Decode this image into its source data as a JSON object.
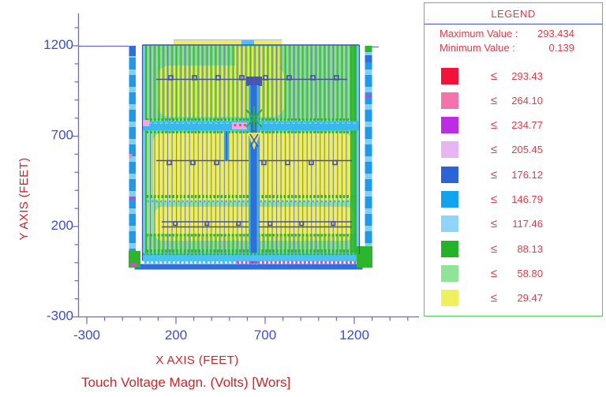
{
  "colors": {
    "axis_text_red": "#d2232a",
    "tick_label_blue": "#3b4ed2",
    "axis_line_blue": "#6468d8",
    "legend_border_green": "#55c857",
    "legend_text_red": "#dc3d49",
    "legend_separator_blue": "#4053cc"
  },
  "legend": {
    "title": "LEGEND",
    "max_label": "Maximum Value :",
    "max_value": "293.434",
    "min_label": "Minimum Value :",
    "min_value": "0.139",
    "operator": "≤",
    "entries": [
      {
        "color": "#f2133b",
        "value": "293.43"
      },
      {
        "color": "#f473ae",
        "value": "264.10"
      },
      {
        "color": "#bb2ce4",
        "value": "234.77"
      },
      {
        "color": "#e7b6f2",
        "value": "205.45"
      },
      {
        "color": "#2d63d9",
        "value": "176.12"
      },
      {
        "color": "#12a3ef",
        "value": "146.79"
      },
      {
        "color": "#8ed5f8",
        "value": "117.46"
      },
      {
        "color": "#22b329",
        "value": "88.13"
      },
      {
        "color": "#8fe497",
        "value": "58.80"
      },
      {
        "color": "#eef05c",
        "value": "29.47"
      }
    ]
  },
  "chart_data": {
    "type": "heatmap",
    "title": "Touch Voltage Magn. (Volts) [Wors]",
    "xlabel": "X AXIS   (FEET)",
    "ylabel": "Y AXIS   (FEET)",
    "xlim": [
      -300,
      1560
    ],
    "ylim": [
      -300,
      1380
    ],
    "x_major_ticks": [
      -300,
      200,
      700,
      1200
    ],
    "y_major_ticks": [
      -300,
      200,
      700,
      1200
    ],
    "minor_tick_step": 100,
    "grid": false,
    "legend_position": "right",
    "maximum_value": 293.434,
    "minimum_value": 0.139,
    "value_unit": "Volts",
    "axis_unit": "FEET",
    "color_scale_thresholds": [
      {
        "upper": 293.43,
        "color": "#f2133b"
      },
      {
        "upper": 264.1,
        "color": "#f473ae"
      },
      {
        "upper": 234.77,
        "color": "#bb2ce4"
      },
      {
        "upper": 205.45,
        "color": "#e7b6f2"
      },
      {
        "upper": 176.12,
        "color": "#2d63d9"
      },
      {
        "upper": 146.79,
        "color": "#12a3ef"
      },
      {
        "upper": 117.46,
        "color": "#8ed5f8"
      },
      {
        "upper": 88.13,
        "color": "#22b329"
      },
      {
        "upper": 58.8,
        "color": "#8fe497"
      },
      {
        "upper": 29.47,
        "color": "#eef05c"
      }
    ]
  }
}
